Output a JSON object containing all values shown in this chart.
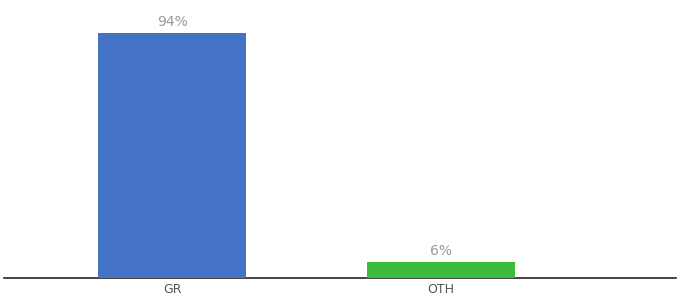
{
  "categories": [
    "GR",
    "OTH"
  ],
  "values": [
    94,
    6
  ],
  "bar_colors": [
    "#4472c4",
    "#3dbb3d"
  ],
  "label_texts": [
    "94%",
    "6%"
  ],
  "background_color": "#ffffff",
  "ylim": [
    0,
    105
  ],
  "x_positions": [
    0.25,
    0.65
  ],
  "bar_width": 0.22,
  "label_fontsize": 10,
  "tick_fontsize": 9,
  "tick_color": "#555555",
  "label_color": "#999999",
  "spine_color": "#222222"
}
